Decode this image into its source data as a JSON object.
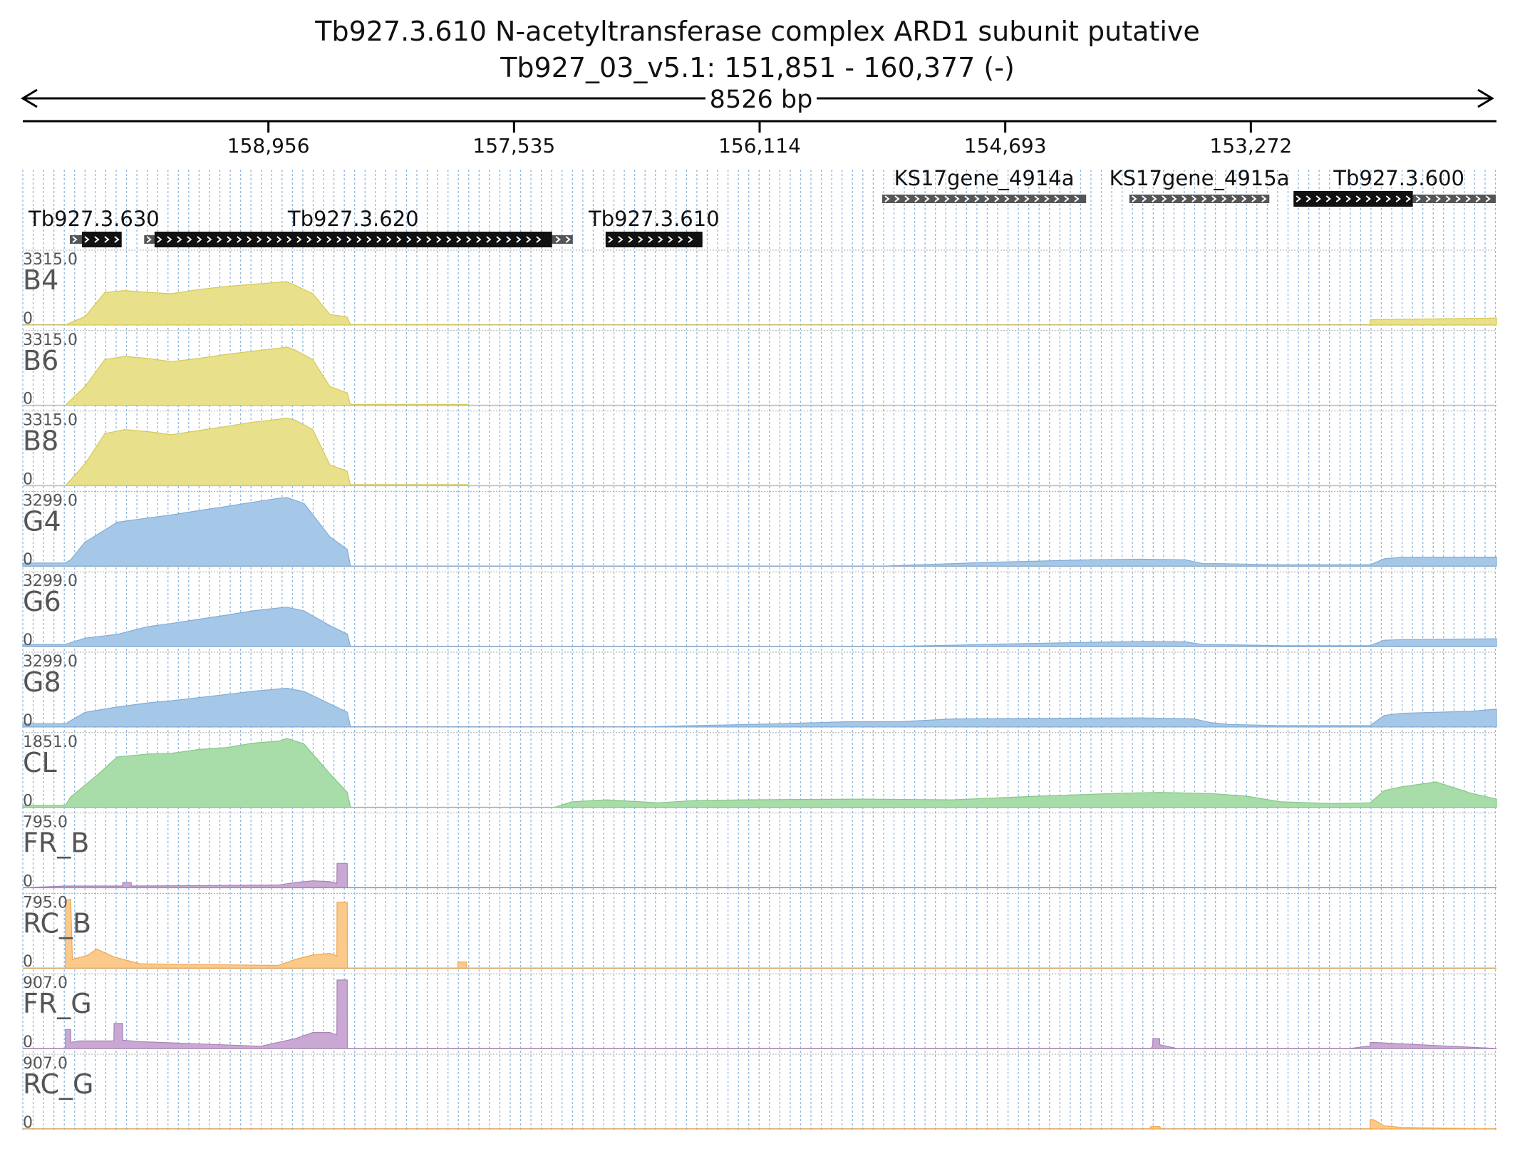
{
  "header": {
    "title": "Tb927.3.610  N-acetyltransferase complex ARD1 subunit  putative",
    "region": "Tb927_03_v5.1: 151,851 - 160,377 (-)",
    "span_label": "8526 bp"
  },
  "chart_data": {
    "type": "area",
    "region": {
      "chrom": "Tb927_03_v5.1",
      "start": 151851,
      "end": 160377,
      "strand": "-"
    },
    "x_axis": {
      "reversed": true,
      "range": [
        160377,
        151851
      ],
      "tick_labels": [
        "158,956",
        "157,535",
        "156,114",
        "154,693",
        "153,272"
      ],
      "ticks": [
        158956,
        157535,
        156114,
        154693,
        153272
      ]
    },
    "genes": [
      {
        "name": "Tb927.3.630",
        "start": 160105,
        "end": 159955,
        "cds": [
          160035,
          159805
        ],
        "row": 2
      },
      {
        "name": "Tb927.3.620",
        "start": 159675,
        "end": 157195,
        "cds": [
          159615,
          157315
        ],
        "row": 2
      },
      {
        "name": "Tb927.3.610",
        "start": 157005,
        "end": 156445,
        "cds": [
          157005,
          156445
        ],
        "row": 2
      },
      {
        "name": "KS17gene_4914a",
        "start": 155405,
        "end": 154225,
        "cds": null,
        "row": 1
      },
      {
        "name": "KS17gene_4915a",
        "start": 153975,
        "end": 153165,
        "cds": null,
        "row": 1
      },
      {
        "name": "Tb927.3.600",
        "start": 153025,
        "end": 151855,
        "cds": [
          153025,
          152335
        ],
        "row": 1
      }
    ],
    "tracks": [
      {
        "name": "B4",
        "max": "3315.0",
        "min": "0",
        "ylim": [
          0,
          3315
        ],
        "color": "#e8e08a",
        "stroke": "#d4c95a",
        "x": [
          160377,
          160131,
          160017,
          159903,
          159789,
          159654,
          159517,
          159360,
          159200,
          159050,
          158890,
          158850,
          158800,
          158700,
          158600,
          158500,
          158481,
          158480,
          157800,
          157795,
          157794,
          152583,
          152582,
          151851
        ],
        "y": [
          0,
          0,
          400,
          1550,
          1650,
          1560,
          1500,
          1700,
          1850,
          1950,
          2050,
          2080,
          1900,
          1500,
          500,
          380,
          0,
          20,
          20,
          0,
          0,
          0,
          250,
          330
        ]
      },
      {
        "name": "B6",
        "max": "3315.0",
        "min": "0",
        "ylim": [
          0,
          3315
        ],
        "color": "#e8e08a",
        "stroke": "#d4c95a",
        "x": [
          160377,
          160131,
          160017,
          159903,
          159789,
          159654,
          159517,
          159360,
          159200,
          159050,
          158890,
          158850,
          158800,
          158700,
          158600,
          158500,
          158481,
          158480,
          157800,
          157795,
          151851
        ],
        "y": [
          0,
          0,
          900,
          2200,
          2350,
          2250,
          2100,
          2250,
          2450,
          2600,
          2750,
          2800,
          2650,
          2200,
          900,
          600,
          0,
          40,
          40,
          0,
          0
        ]
      },
      {
        "name": "B8",
        "max": "3315.0",
        "min": "0",
        "ylim": [
          0,
          3315
        ],
        "color": "#e8e08a",
        "stroke": "#d4c95a",
        "x": [
          160377,
          160131,
          160017,
          159903,
          159789,
          159654,
          159517,
          159360,
          159200,
          159050,
          158890,
          158850,
          158800,
          158700,
          158600,
          158500,
          158481,
          158480,
          157800,
          157795,
          151851
        ],
        "y": [
          0,
          0,
          1050,
          2500,
          2700,
          2600,
          2450,
          2650,
          2850,
          3050,
          3200,
          3250,
          3150,
          2700,
          1000,
          700,
          0,
          50,
          50,
          0,
          0
        ]
      },
      {
        "name": "G4",
        "max": "3299.0",
        "min": "0",
        "ylim": [
          0,
          3299
        ],
        "color": "#a6c8e8",
        "stroke": "#82acd6",
        "x": [
          160377,
          160131,
          160100,
          160017,
          159830,
          159654,
          159517,
          159360,
          159200,
          159050,
          158890,
          158850,
          158750,
          158600,
          158500,
          158481,
          158480,
          155400,
          155000,
          154700,
          154200,
          153900,
          153650,
          153550,
          153450,
          153100,
          152583,
          152500,
          152400,
          151851
        ],
        "y": [
          150,
          150,
          300,
          1150,
          2100,
          2300,
          2450,
          2650,
          2850,
          3050,
          3250,
          3280,
          3000,
          1400,
          800,
          0,
          0,
          0,
          120,
          200,
          300,
          330,
          300,
          120,
          120,
          60,
          60,
          350,
          420,
          430
        ]
      },
      {
        "name": "G6",
        "max": "3299.0",
        "min": "0",
        "ylim": [
          0,
          3299
        ],
        "color": "#a6c8e8",
        "stroke": "#82acd6",
        "x": [
          160377,
          160131,
          160100,
          160017,
          159830,
          159654,
          159517,
          159360,
          159200,
          159050,
          158890,
          158850,
          158750,
          158600,
          158500,
          158481,
          158480,
          155400,
          155000,
          154700,
          154200,
          153900,
          153650,
          153550,
          153450,
          153100,
          152583,
          152500,
          152400,
          151851
        ],
        "y": [
          100,
          100,
          180,
          400,
          580,
          950,
          1100,
          1300,
          1500,
          1700,
          1850,
          1880,
          1700,
          1000,
          600,
          0,
          0,
          0,
          60,
          120,
          200,
          240,
          220,
          90,
          90,
          40,
          40,
          300,
          330,
          370
        ]
      },
      {
        "name": "G8",
        "max": "3299.0",
        "min": "0",
        "ylim": [
          0,
          3299
        ],
        "color": "#a6c8e8",
        "stroke": "#82acd6",
        "x": [
          160377,
          160131,
          160100,
          160017,
          159830,
          159654,
          159517,
          159360,
          159200,
          159050,
          158890,
          158850,
          158750,
          158600,
          158500,
          158481,
          158480,
          156800,
          156500,
          156000,
          155600,
          155300,
          155000,
          154700,
          154200,
          153900,
          153600,
          153500,
          153400,
          153100,
          152583,
          152500,
          152400,
          152000,
          151851
        ],
        "y": [
          150,
          150,
          300,
          700,
          950,
          1150,
          1250,
          1400,
          1550,
          1700,
          1820,
          1850,
          1700,
          1100,
          700,
          0,
          0,
          0,
          60,
          150,
          250,
          250,
          380,
          400,
          420,
          430,
          380,
          200,
          120,
          60,
          60,
          550,
          650,
          750,
          850
        ]
      },
      {
        "name": "CL",
        "max": "1851.0",
        "min": "0",
        "ylim": [
          0,
          1851
        ],
        "color": "#a8dca8",
        "stroke": "#86c886",
        "x": [
          160377,
          160131,
          160100,
          159950,
          159830,
          159654,
          159517,
          159360,
          159200,
          159050,
          158890,
          158850,
          158750,
          158600,
          158500,
          158481,
          158480,
          157300,
          157200,
          157000,
          156700,
          156500,
          156200,
          155500,
          155000,
          154500,
          154000,
          153800,
          153500,
          153300,
          153100,
          152800,
          152583,
          152500,
          152400,
          152200,
          152000,
          151851
        ],
        "y": [
          50,
          50,
          280,
          850,
          1350,
          1430,
          1450,
          1550,
          1600,
          1720,
          1780,
          1850,
          1700,
          900,
          400,
          0,
          0,
          0,
          150,
          200,
          120,
          180,
          200,
          220,
          200,
          300,
          380,
          400,
          370,
          300,
          150,
          100,
          120,
          450,
          550,
          680,
          380,
          220
        ]
      },
      {
        "name": "FR_B",
        "max": "795.0",
        "min": "0",
        "ylim": [
          0,
          795
        ],
        "color": "#c9a8d4",
        "stroke": "#a884b6",
        "x": [
          160377,
          160131,
          159800,
          159799,
          159750,
          159749,
          158900,
          158800,
          158700,
          158600,
          158560,
          158559,
          158500,
          158499,
          158481,
          158480,
          151851
        ],
        "y": [
          0,
          20,
          20,
          60,
          60,
          20,
          30,
          60,
          80,
          70,
          50,
          280,
          280,
          0,
          0,
          0,
          0
        ]
      },
      {
        "name": "RC_B",
        "max": "795.0",
        "min": "0",
        "ylim": [
          0,
          795
        ],
        "color": "#fbc98a",
        "stroke": "#f0a850",
        "x": [
          160377,
          160131,
          160130,
          160100,
          160090,
          160000,
          159950,
          159850,
          159700,
          158900,
          158800,
          158700,
          158600,
          158560,
          158559,
          158500,
          158499,
          158481,
          158480,
          157860,
          157859,
          157810,
          157809,
          151851
        ],
        "y": [
          0,
          0,
          780,
          800,
          100,
          150,
          220,
          130,
          50,
          30,
          100,
          150,
          170,
          140,
          760,
          760,
          0,
          0,
          0,
          0,
          70,
          70,
          0,
          0
        ]
      },
      {
        "name": "FR_G",
        "max": "907.0",
        "min": "0",
        "ylim": [
          0,
          907
        ],
        "color": "#c9a8d4",
        "stroke": "#a884b6",
        "x": [
          160377,
          160131,
          160130,
          160100,
          160099,
          160050,
          159850,
          159849,
          159800,
          159799,
          159700,
          159000,
          158800,
          158700,
          158600,
          158560,
          158559,
          158500,
          158499,
          158481,
          158480,
          153850,
          153840,
          153839,
          153800,
          153799,
          153700,
          152700,
          152600,
          152583,
          152582,
          152560,
          151851
        ],
        "y": [
          0,
          0,
          250,
          250,
          80,
          100,
          100,
          330,
          330,
          110,
          90,
          30,
          130,
          210,
          210,
          180,
          900,
          900,
          0,
          0,
          0,
          0,
          30,
          130,
          130,
          50,
          0,
          0,
          30,
          30,
          80,
          80,
          0
        ]
      },
      {
        "name": "RC_G",
        "max": "907.0",
        "min": "0",
        "ylim": [
          0,
          907
        ],
        "color": "#fbc98a",
        "stroke": "#f0a850",
        "x": [
          160377,
          153860,
          153850,
          153800,
          153790,
          152600,
          152583,
          152582,
          152560,
          152500,
          152400,
          151851
        ],
        "y": [
          0,
          0,
          30,
          30,
          0,
          0,
          0,
          120,
          120,
          40,
          20,
          0
        ]
      }
    ],
    "xlabel": "",
    "ylabel": ""
  }
}
